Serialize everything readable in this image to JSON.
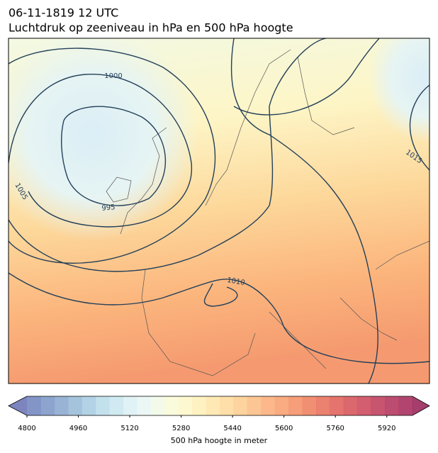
{
  "header": {
    "title": "06-11-1819 12 UTC",
    "subtitle": "Luchtdruk op zeeniveau in hPa en 500 hPa hoogte"
  },
  "map": {
    "isobar_labels": [
      1000,
      995,
      1005,
      1010,
      1015
    ]
  },
  "colorbar": {
    "label": "500 hPa hoogte in meter",
    "clim": [
      4800,
      6000
    ],
    "ticks": [
      4800,
      4960,
      5120,
      5280,
      5440,
      5600,
      5760,
      5920
    ],
    "colors": [
      "#6670b3",
      "#6d82bc",
      "#7894c5",
      "#86a6cd",
      "#95b9d6",
      "#a6cae0",
      "#b8daea",
      "#c9e6f0",
      "#daf0f4",
      "#e8f6f2",
      "#f2f9e6",
      "#f8fad6",
      "#fdf7c8",
      "#fef0b8",
      "#fee5a8",
      "#fed99a",
      "#fdcb8d",
      "#fcbc81",
      "#fbac75",
      "#f89c6b",
      "#f48c62",
      "#ee7b5b",
      "#e86b56",
      "#df5c54",
      "#d54e54",
      "#ca4256",
      "#bd3757",
      "#b02d57",
      "#a32456",
      "#961c54"
    ]
  }
}
